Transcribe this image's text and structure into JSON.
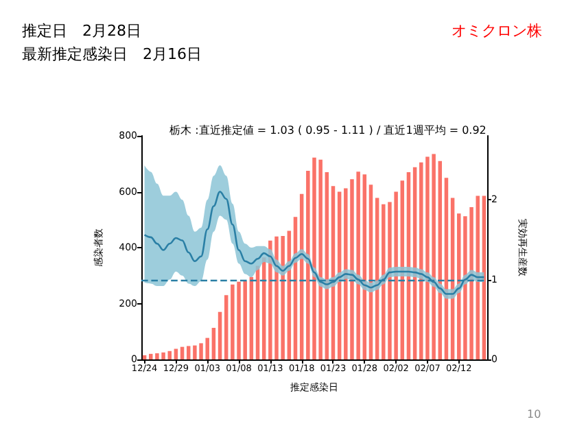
{
  "chart_data": {
    "type": "bar",
    "title": "栃木 :直近推定値 = 1.03 ( 0.95 - 1.11 ) / 直近1週平均 = 0.92",
    "annotations": [
      "推定日　2月28日",
      "最新推定感染日　2月16日",
      "オミクロン株",
      "10"
    ],
    "xlabel": "推定感染日",
    "ylabel": "感染者数",
    "y2label": "実効再生産数",
    "categories": [
      "12/24",
      null,
      null,
      null,
      null,
      "12/29",
      null,
      null,
      null,
      null,
      "01/03",
      null,
      null,
      null,
      null,
      "01/08",
      null,
      null,
      null,
      null,
      "01/13",
      null,
      null,
      null,
      null,
      "01/18",
      null,
      null,
      null,
      null,
      "01/23",
      null,
      null,
      null,
      null,
      "01/28",
      null,
      null,
      null,
      null,
      "02/02",
      null,
      null,
      null,
      null,
      "02/07",
      null,
      null,
      null,
      null,
      "02/12",
      null,
      null,
      null,
      null
    ],
    "series": [
      {
        "color": "#fa7268",
        "values": [
          15,
          20,
          22,
          25,
          30,
          38,
          45,
          48,
          50,
          58,
          77,
          113,
          170,
          230,
          268,
          278,
          280,
          295,
          335,
          365,
          425,
          440,
          442,
          460,
          510,
          592,
          675,
          722,
          715,
          670,
          620,
          600,
          612,
          645,
          672,
          662,
          625,
          578,
          555,
          563,
          600,
          640,
          670,
          688,
          705,
          725,
          735,
          710,
          650,
          578,
          522,
          512,
          545,
          585,
          585
        ]
      },
      {
        "type": "line",
        "axis": "y2",
        "color": "#2a7fa5",
        "values": [
          1.56,
          1.53,
          1.45,
          1.37,
          1.45,
          1.52,
          1.49,
          1.34,
          1.23,
          1.29,
          1.63,
          1.92,
          2.1,
          2.01,
          1.69,
          1.37,
          1.23,
          1.2,
          1.26,
          1.33,
          1.29,
          1.17,
          1.11,
          1.17,
          1.27,
          1.32,
          1.26,
          1.09,
          0.97,
          0.94,
          0.97,
          1.03,
          1.07,
          1.06,
          1.0,
          0.93,
          0.9,
          0.93,
          1.0,
          1.09,
          1.1,
          1.1,
          1.1,
          1.09,
          1.07,
          1.03,
          0.97,
          0.89,
          0.82,
          0.82,
          0.89,
          1.0,
          1.06,
          1.03,
          1.03
        ],
        "lower": [
          0.96,
          0.95,
          0.92,
          0.92,
          1.0,
          1.1,
          1.05,
          0.95,
          0.92,
          0.98,
          1.25,
          1.6,
          1.8,
          1.75,
          1.45,
          1.2,
          1.07,
          1.03,
          1.12,
          1.22,
          1.2,
          1.09,
          1.05,
          1.11,
          1.21,
          1.26,
          1.2,
          1.03,
          0.91,
          0.88,
          0.91,
          0.97,
          1.01,
          1.0,
          0.94,
          0.87,
          0.84,
          0.87,
          0.94,
          1.03,
          1.04,
          1.04,
          1.04,
          1.03,
          1.01,
          0.97,
          0.91,
          0.83,
          0.76,
          0.76,
          0.83,
          0.94,
          1.0,
          0.97,
          0.97
        ],
        "upper": [
          2.43,
          2.35,
          2.2,
          2.05,
          2.05,
          2.1,
          2.0,
          1.8,
          1.6,
          1.65,
          2.0,
          2.3,
          2.43,
          2.3,
          1.95,
          1.6,
          1.45,
          1.4,
          1.42,
          1.42,
          1.38,
          1.25,
          1.17,
          1.23,
          1.33,
          1.38,
          1.32,
          1.15,
          1.03,
          1.0,
          1.03,
          1.09,
          1.13,
          1.12,
          1.06,
          0.99,
          0.96,
          0.99,
          1.06,
          1.15,
          1.16,
          1.16,
          1.16,
          1.15,
          1.13,
          1.09,
          1.03,
          0.95,
          0.88,
          0.88,
          0.95,
          1.06,
          1.12,
          1.09,
          1.09
        ]
      }
    ],
    "ylim": [
      0,
      800
    ],
    "yticks": [
      0,
      200,
      400,
      600,
      800
    ],
    "y2lim": [
      0,
      2.8
    ],
    "y2ticks": [
      0,
      1,
      2
    ],
    "ref_lines": [
      {
        "axis": "y2",
        "value": 1,
        "color": "#2a7fa5",
        "line_style": "dashed"
      }
    ],
    "grid": false
  }
}
